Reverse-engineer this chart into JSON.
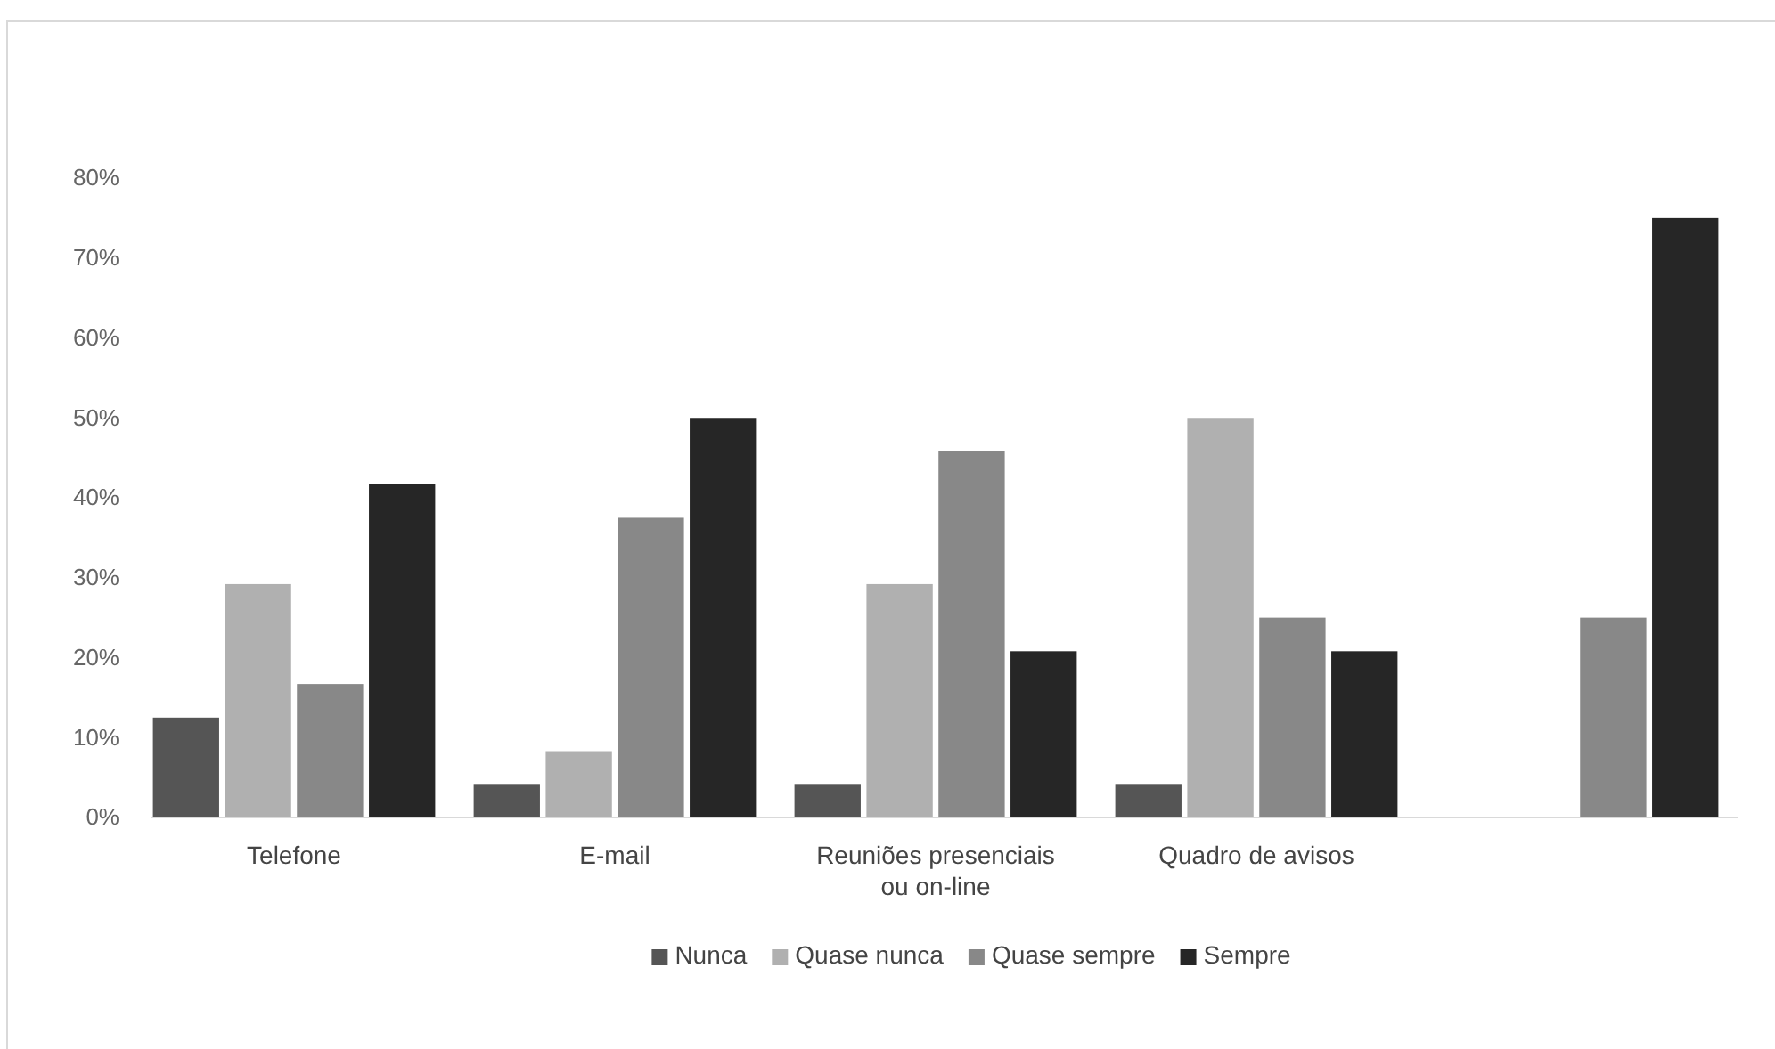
{
  "chart_data": {
    "type": "bar",
    "categories": [
      "Telefone",
      "E-mail",
      "Reuniões presenciais ou on-line",
      "Quadro de avisos",
      null
    ],
    "ylim": [
      0,
      80
    ],
    "yticks": [
      {
        "value": 0,
        "label": "0%"
      },
      {
        "value": 10,
        "label": "10%"
      },
      {
        "value": 20,
        "label": "20%"
      },
      {
        "value": 30,
        "label": "30%"
      },
      {
        "value": 40,
        "label": "40%"
      },
      {
        "value": 50,
        "label": "50%"
      },
      {
        "value": 60,
        "label": "60%"
      },
      {
        "value": 70,
        "label": "70%"
      },
      {
        "value": 80,
        "label": "80%"
      }
    ],
    "grid": false,
    "legend": "bottom",
    "series": [
      {
        "name": "Nunca",
        "color": "#555555",
        "values": [
          12.5,
          4.2,
          4.2,
          4.2,
          0
        ]
      },
      {
        "name": "Quase nunca",
        "color": "#b0b0b0",
        "values": [
          29.2,
          8.3,
          29.2,
          50,
          0
        ]
      },
      {
        "name": "Quase sempre",
        "color": "#888888",
        "values": [
          16.7,
          37.5,
          45.8,
          25,
          25
        ]
      },
      {
        "name": "Sempre",
        "color": "#262626",
        "values": [
          41.7,
          50,
          20.8,
          20.8,
          75
        ]
      }
    ]
  }
}
